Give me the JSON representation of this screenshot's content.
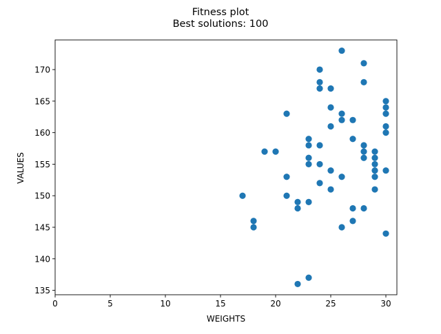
{
  "chart_data": {
    "type": "scatter",
    "title": "Fitness plot",
    "subtitle": "Best solutions: 100",
    "xlabel": "WEIGHTS",
    "ylabel": "VALUES",
    "xlim": [
      0,
      31
    ],
    "ylim": [
      134.3,
      174.7
    ],
    "xticks": [
      0,
      5,
      10,
      15,
      20,
      25,
      30
    ],
    "yticks": [
      135,
      140,
      145,
      150,
      155,
      160,
      165,
      170
    ],
    "grid": false,
    "point_color": "#1f77b4",
    "points": [
      [
        17,
        150
      ],
      [
        18,
        146
      ],
      [
        18,
        145
      ],
      [
        19,
        157
      ],
      [
        20,
        157
      ],
      [
        21,
        163
      ],
      [
        21,
        153
      ],
      [
        21,
        150
      ],
      [
        22,
        149
      ],
      [
        22,
        148
      ],
      [
        22,
        136
      ],
      [
        23,
        159
      ],
      [
        23,
        158
      ],
      [
        23,
        156
      ],
      [
        23,
        155
      ],
      [
        23,
        149
      ],
      [
        23,
        137
      ],
      [
        24,
        170
      ],
      [
        24,
        168
      ],
      [
        24,
        167
      ],
      [
        24,
        158
      ],
      [
        24,
        155
      ],
      [
        24,
        152
      ],
      [
        25,
        167
      ],
      [
        25,
        164
      ],
      [
        25,
        161
      ],
      [
        25,
        154
      ],
      [
        25,
        151
      ],
      [
        26,
        173
      ],
      [
        26,
        163
      ],
      [
        26,
        162
      ],
      [
        26,
        153
      ],
      [
        26,
        145
      ],
      [
        27,
        162
      ],
      [
        27,
        159
      ],
      [
        27,
        148
      ],
      [
        27,
        146
      ],
      [
        28,
        171
      ],
      [
        28,
        168
      ],
      [
        28,
        158
      ],
      [
        28,
        157
      ],
      [
        28,
        156
      ],
      [
        28,
        148
      ],
      [
        29,
        157
      ],
      [
        29,
        156
      ],
      [
        29,
        155
      ],
      [
        29,
        154
      ],
      [
        29,
        153
      ],
      [
        29,
        151
      ],
      [
        30,
        165
      ],
      [
        30,
        164
      ],
      [
        30,
        163
      ],
      [
        30,
        161
      ],
      [
        30,
        160
      ],
      [
        30,
        154
      ],
      [
        30,
        144
      ]
    ]
  }
}
